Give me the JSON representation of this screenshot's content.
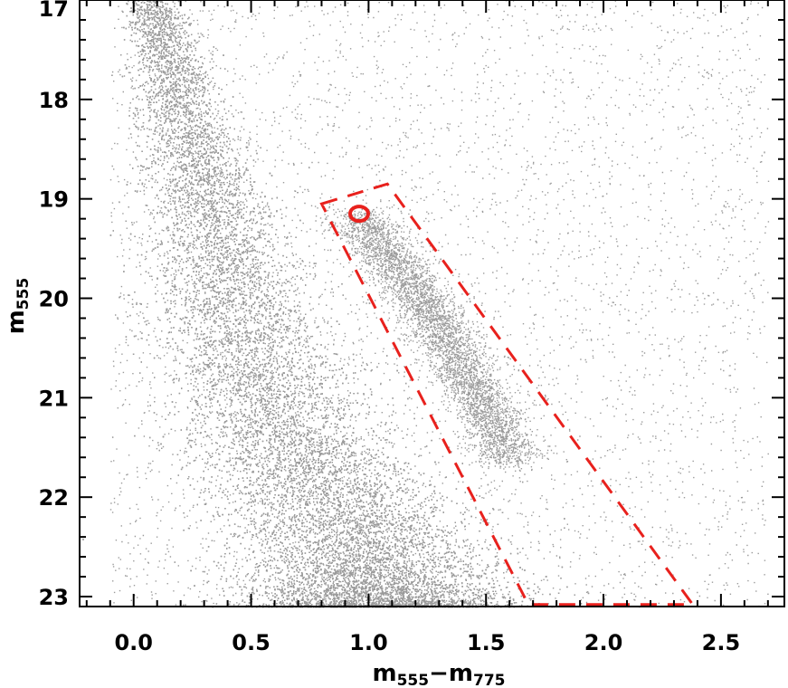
{
  "chart_data": {
    "type": "scatter",
    "title": "",
    "xlabel": {
      "base1": "m",
      "sub1": "555",
      "sep": "−",
      "base2": "m",
      "sub2": "775"
    },
    "ylabel": {
      "base": "m",
      "sub": "555"
    },
    "xlim": [
      -0.23,
      2.77
    ],
    "ylim": [
      23.1,
      17.0
    ],
    "y_inverted": true,
    "x_ticks": [
      0.0,
      0.5,
      1.0,
      1.5,
      2.0,
      2.5
    ],
    "x_tick_labels": [
      "0.0",
      "0.5",
      "1.0",
      "1.5",
      "2.0",
      "2.5"
    ],
    "y_ticks": [
      17,
      18,
      19,
      20,
      21,
      22,
      23
    ],
    "y_tick_labels": [
      "17",
      "18",
      "19",
      "20",
      "21",
      "22",
      "23"
    ],
    "grid": false,
    "point_color": "#9b9b9b",
    "highlight_color": "#e8211d",
    "stellar_distribution": {
      "main_sequence_ridge": [
        [
          0.05,
          17.0
        ],
        [
          0.15,
          18.0
        ],
        [
          0.25,
          19.0
        ],
        [
          0.35,
          20.0
        ],
        [
          0.45,
          20.8
        ],
        [
          0.6,
          21.6
        ],
        [
          0.8,
          22.3
        ],
        [
          0.95,
          23.1
        ]
      ],
      "red_clump_ridge": [
        [
          0.95,
          19.15
        ],
        [
          1.1,
          19.6
        ],
        [
          1.3,
          20.3
        ],
        [
          1.45,
          20.9
        ],
        [
          1.6,
          21.6
        ]
      ],
      "field_color_range": [
        -0.1,
        2.7
      ],
      "field_mag_range": [
        17.0,
        23.1
      ]
    },
    "selection_box": [
      [
        0.8,
        19.05
      ],
      [
        1.08,
        18.85
      ],
      [
        2.38,
        23.08
      ],
      [
        1.68,
        23.08
      ]
    ],
    "marked_star": {
      "x": 0.96,
      "y": 19.15
    }
  }
}
